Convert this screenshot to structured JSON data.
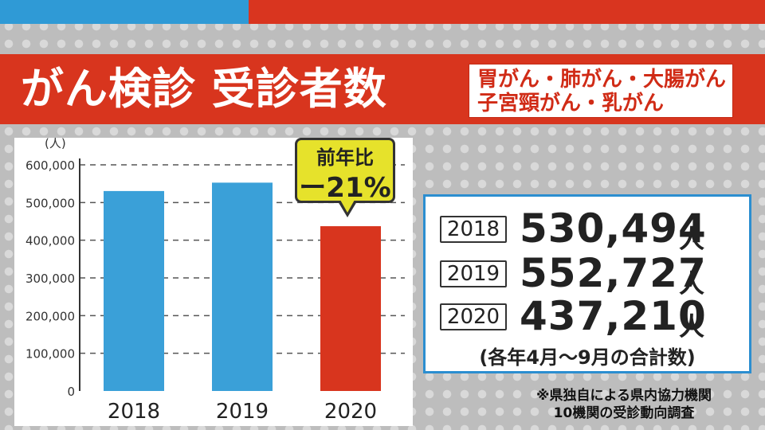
{
  "title": "がん検診 受診者数",
  "subtitle": [
    "胃がん・肺がん・大腸がん",
    "子宮頸がん・乳がん"
  ],
  "callout": {
    "line1": "前年比",
    "line2": "ー21%"
  },
  "stats": [
    {
      "year": "2018",
      "value": "530,494",
      "unit": "人"
    },
    {
      "year": "2019",
      "value": "552,727",
      "unit": "人"
    },
    {
      "year": "2020",
      "value": "437,210",
      "unit": "人"
    }
  ],
  "stats_note": "(各年4月～9月の合計数)",
  "footnote": [
    "※県独自による県内協力機関",
    "10機関の受診動向調査"
  ],
  "colors": {
    "blue_bar": "#3aa0d8",
    "red_bar": "#d8351e",
    "accent_red": "#d8351e",
    "accent_blue": "#2b8ed0"
  },
  "chart_data": {
    "type": "bar",
    "categories": [
      "2018",
      "2019",
      "2020"
    ],
    "values": [
      530494,
      552727,
      437210
    ],
    "bar_colors": [
      "#3aa0d8",
      "#3aa0d8",
      "#d8351e"
    ],
    "ylim": [
      0,
      600000
    ],
    "yticks": [
      0,
      100000,
      200000,
      300000,
      400000,
      500000,
      600000
    ],
    "ytick_labels": [
      "0",
      "100,000",
      "200,000",
      "300,000",
      "400,000",
      "500,000",
      "600,000"
    ],
    "ylabel": "(人)",
    "xlabel": "",
    "grid": true
  }
}
